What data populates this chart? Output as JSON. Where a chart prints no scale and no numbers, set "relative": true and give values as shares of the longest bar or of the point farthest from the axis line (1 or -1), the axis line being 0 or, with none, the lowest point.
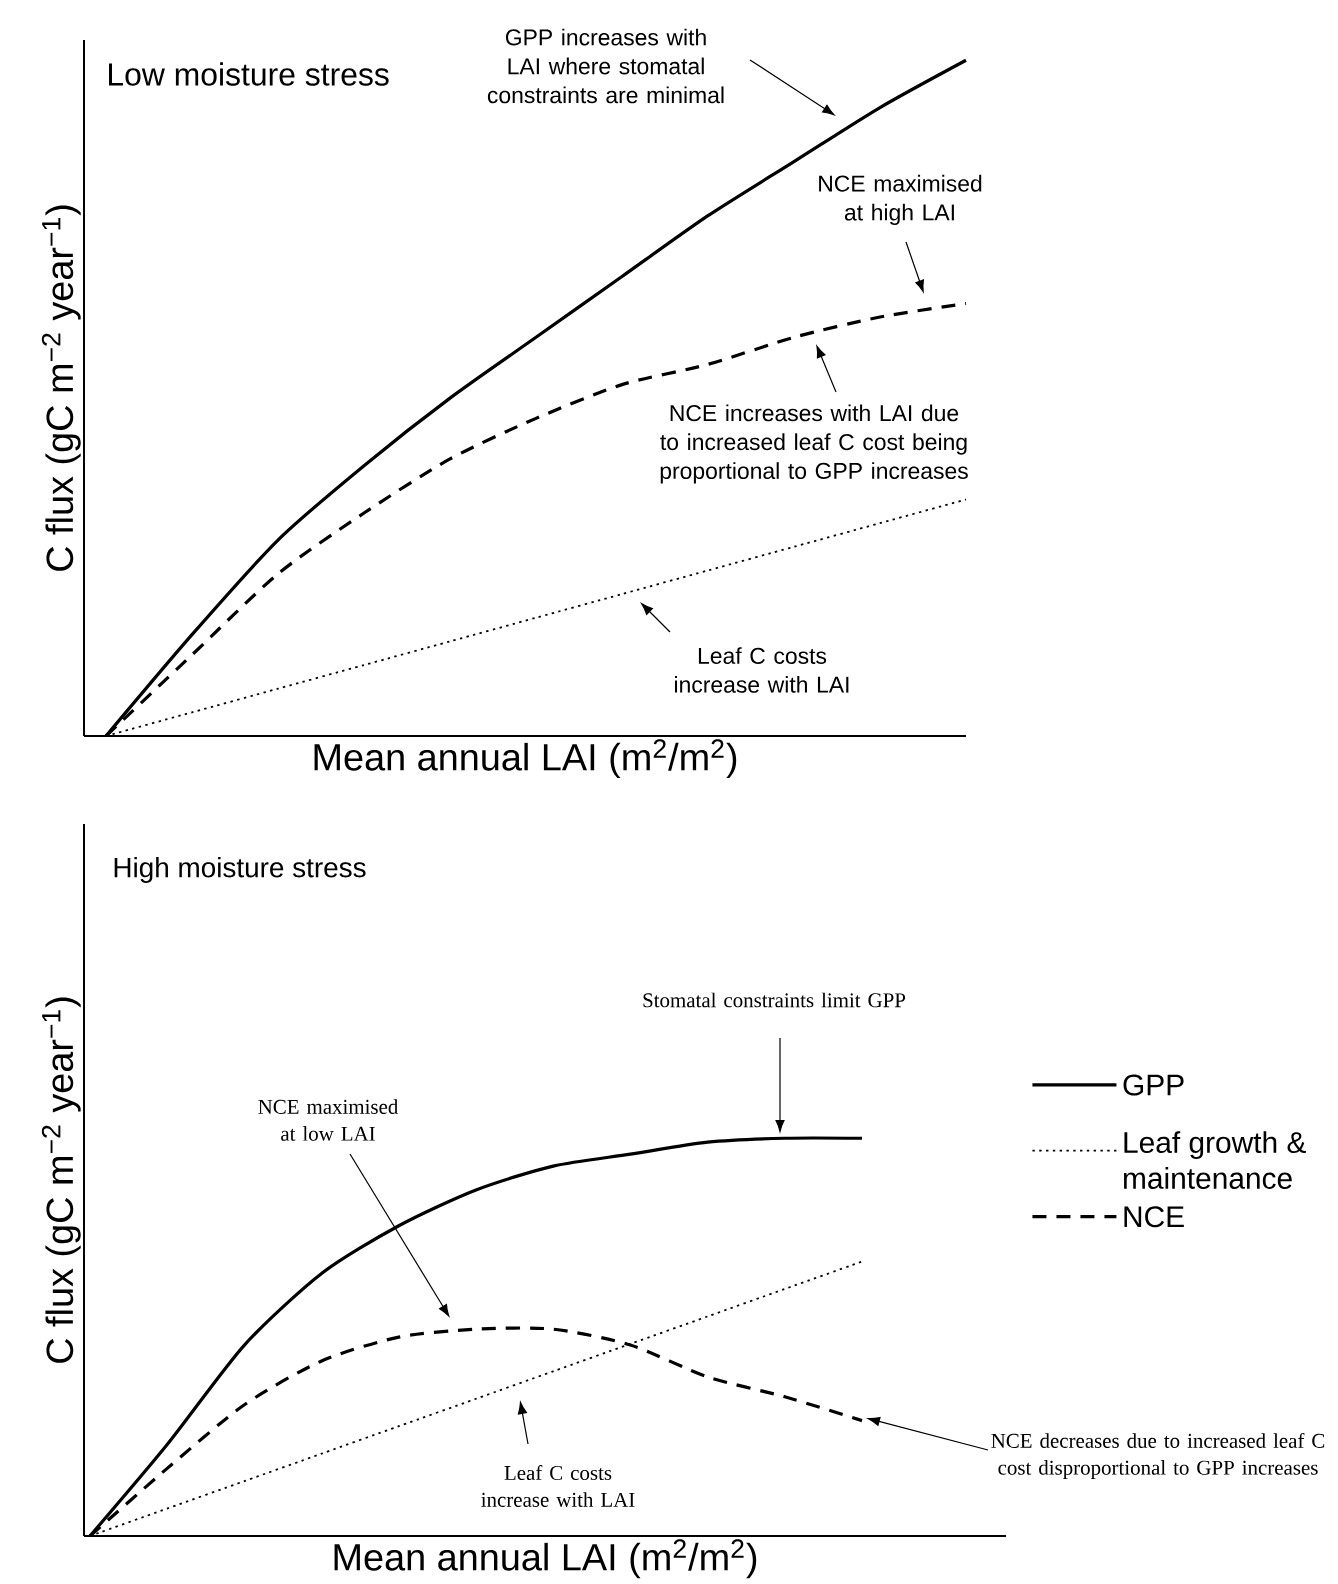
{
  "chart_data": [
    {
      "type": "line",
      "title": "Low moisture stress",
      "xlabel": "Mean annual LAI (m$^{2}$/m$^{2}$)",
      "ylabel": "C flux (gC m$^{−2}$ year$^{−1}$)",
      "relative": true,
      "legend": false,
      "categories": [
        null,
        null,
        null,
        null,
        null,
        null,
        null,
        null,
        null,
        null,
        null
      ],
      "series": [
        {
          "color": "#000000",
          "line_style": "solid",
          "values": [
            0,
            0.15,
            0.29,
            0.4,
            0.5,
            0.59,
            0.68,
            0.77,
            0.85,
            0.93,
            1.0
          ]
        },
        {
          "color": "#000000",
          "line_style": "dotted",
          "values": [
            0,
            0.035,
            0.07,
            0.105,
            0.14,
            0.175,
            0.21,
            0.245,
            0.28,
            0.315,
            0.35
          ]
        },
        {
          "color": "#000000",
          "line_style": "dashed",
          "values": [
            0,
            0.12,
            0.24,
            0.33,
            0.41,
            0.47,
            0.52,
            0.55,
            0.59,
            0.62,
            0.64
          ]
        }
      ],
      "annotations": [
        "GPP increases with LAI where stomatal constraints are minimal",
        "NCE maximised at high LAI",
        "NCE increases with LAI due to increased leaf C cost being proportional to GPP increases",
        "Leaf C costs increase with LAI"
      ]
    },
    {
      "type": "line",
      "title": "High moisture stress",
      "xlabel": "Mean annual LAI (m$^{2}$/m$^{2}$)",
      "ylabel": "C flux (gC m$^{−2}$ year$^{−1}$)",
      "relative": true,
      "legend": "right",
      "categories": [
        null,
        null,
        null,
        null,
        null,
        null,
        null,
        null,
        null,
        null,
        null
      ],
      "series": [
        {
          "name": "GPP",
          "color": "#000000",
          "line_style": "solid",
          "values": [
            0,
            0.23,
            0.48,
            0.66,
            0.78,
            0.87,
            0.93,
            0.96,
            0.99,
            1.0,
            1.0
          ]
        },
        {
          "name": "Leaf growth & maintenance",
          "color": "#000000",
          "line_style": "dotted",
          "values": [
            0,
            0.069,
            0.138,
            0.207,
            0.276,
            0.345,
            0.414,
            0.483,
            0.552,
            0.621,
            0.69
          ]
        },
        {
          "name": "NCE",
          "color": "#000000",
          "line_style": "dashed",
          "values": [
            0,
            0.17,
            0.33,
            0.44,
            0.5,
            0.52,
            0.52,
            0.48,
            0.4,
            0.35,
            0.29
          ]
        }
      ],
      "annotations": [
        "Stomatal constraints limit GPP",
        "NCE maximised at low LAI",
        "Leaf C costs increase with LAI",
        "NCE decreases due to increased leaf C cost disproportional to GPP increases"
      ]
    }
  ]
}
